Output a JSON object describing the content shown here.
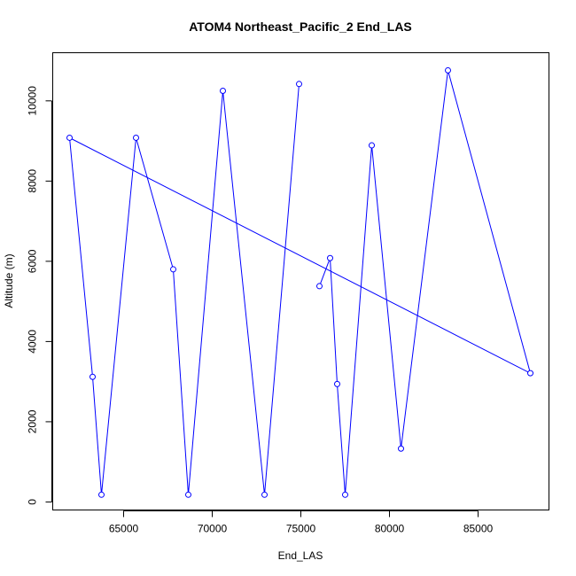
{
  "chart_data": {
    "type": "scatter",
    "title": "ATOM4 Northeast_Pacific_2 End_LAS",
    "xlabel": "End_LAS",
    "ylabel": "Altitude (m)",
    "xlim": [
      61000,
      89000
    ],
    "ylim": [
      -200,
      11200
    ],
    "x_ticks": [
      65000,
      70000,
      75000,
      80000,
      85000
    ],
    "y_ticks": [
      0,
      2000,
      4000,
      6000,
      8000,
      10000
    ],
    "grid": false,
    "color": "#0000ff",
    "series": [
      {
        "x": [
          61950,
          63250,
          63750,
          65700,
          67800,
          68650,
          70600,
          72950,
          74900,
          76050,
          76650,
          77050,
          77500,
          79000,
          80650,
          83300,
          87950
        ],
        "y": [
          9080,
          3120,
          180,
          9080,
          5800,
          180,
          10250,
          180,
          10420,
          5380,
          6080,
          2940,
          180,
          8890,
          1330,
          10760,
          3210
        ],
        "connect_order": [
          0,
          16,
          15,
          14,
          13,
          12,
          11,
          10,
          9,
          8,
          7,
          6,
          5,
          4,
          3,
          2,
          1,
          0
        ],
        "connect_breaks": [
          9
        ]
      }
    ]
  }
}
